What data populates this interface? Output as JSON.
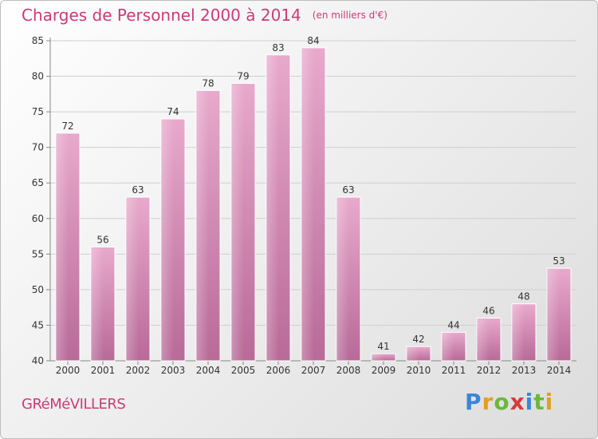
{
  "header": {
    "title": "Charges de Personnel 2000 à 2014",
    "unit": "(en milliers d'€)"
  },
  "footer": {
    "city": "GRéMéVILLERS",
    "brand": "Proxiti"
  },
  "colors": {
    "bar_light": "#e8a9cc",
    "bar_dark": "#b86a98",
    "accent": "#cc3a7a"
  },
  "chart_data": {
    "type": "bar",
    "title": "Charges de Personnel 2000 à 2014",
    "subtitle": "(en milliers d'€)",
    "xlabel": "",
    "ylabel": "",
    "categories": [
      "2000",
      "2001",
      "2002",
      "2003",
      "2004",
      "2005",
      "2006",
      "2007",
      "2008",
      "2009",
      "2010",
      "2011",
      "2012",
      "2013",
      "2014"
    ],
    "values": [
      72,
      56,
      63,
      74,
      78,
      79,
      83,
      84,
      63,
      41,
      42,
      44,
      46,
      48,
      53
    ],
    "ylim": [
      40,
      85
    ],
    "yticks": [
      40,
      45,
      50,
      55,
      60,
      65,
      70,
      75,
      80,
      85
    ],
    "grid": true,
    "data_labels": true
  }
}
